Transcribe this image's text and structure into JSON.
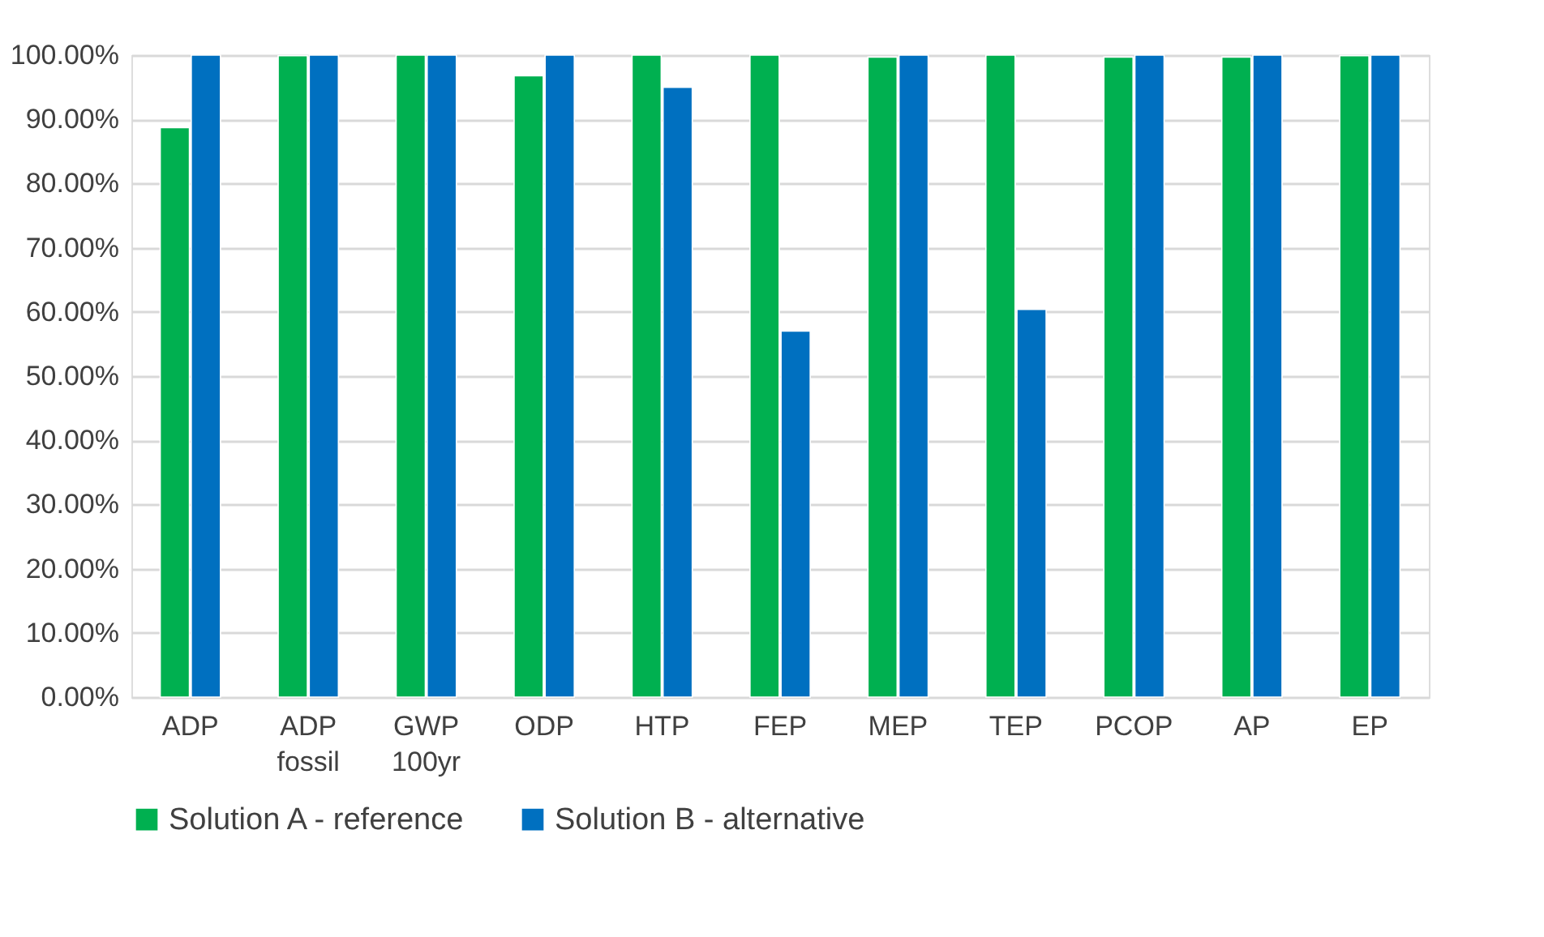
{
  "chart_data": {
    "type": "bar",
    "categories": [
      "ADP",
      "ADP fossil",
      "GWP 100yr",
      "ODP",
      "HTP",
      "FEP",
      "MEP",
      "TEP",
      "PCOP",
      "AP",
      "EP"
    ],
    "series": [
      {
        "name": "Solution A - reference",
        "color": "#00b050",
        "values": [
          88.7,
          99.9,
          100,
          96.8,
          100,
          100,
          99.7,
          100,
          99.7,
          99.7,
          99.9
        ]
      },
      {
        "name": "Solution B - alternative",
        "color": "#0070c0",
        "values": [
          100,
          100,
          100,
          100,
          95.0,
          57.0,
          100,
          60.4,
          100,
          100,
          100
        ]
      }
    ],
    "ylim": [
      0,
      100
    ],
    "yticks": [
      {
        "value": 0,
        "label": "0.00%"
      },
      {
        "value": 10,
        "label": "10.00%"
      },
      {
        "value": 20,
        "label": "20.00%"
      },
      {
        "value": 30,
        "label": "30.00%"
      },
      {
        "value": 40,
        "label": "40.00%"
      },
      {
        "value": 50,
        "label": "50.00%"
      },
      {
        "value": 60,
        "label": "60.00%"
      },
      {
        "value": 70,
        "label": "70.00%"
      },
      {
        "value": 80,
        "label": "80.00%"
      },
      {
        "value": 90,
        "label": "90.00%"
      },
      {
        "value": 100,
        "label": "100.00%"
      }
    ],
    "grid": "y",
    "legend": "bottom"
  }
}
